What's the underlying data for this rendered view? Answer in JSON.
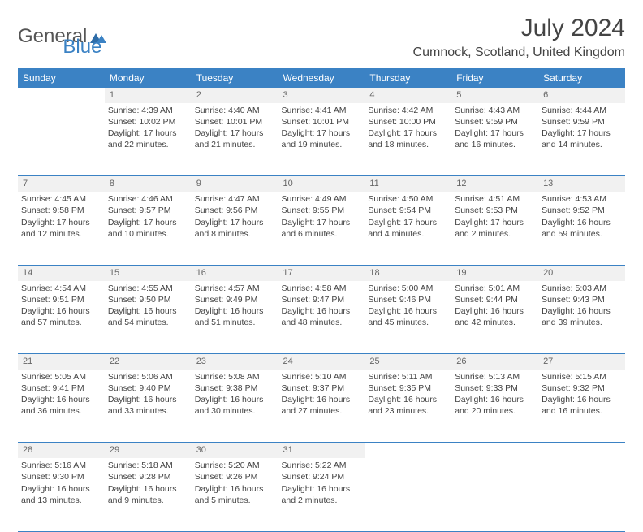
{
  "brand": {
    "part1": "General",
    "part2": "Blue"
  },
  "title": "July 2024",
  "location": "Cumnock, Scotland, United Kingdom",
  "colors": {
    "header_bg": "#3b82c4",
    "header_fg": "#ffffff",
    "daynum_bg": "#f1f1f1",
    "text": "#444444",
    "rule": "#3b82c4"
  },
  "weekdays": [
    "Sunday",
    "Monday",
    "Tuesday",
    "Wednesday",
    "Thursday",
    "Friday",
    "Saturday"
  ],
  "weeks": [
    {
      "nums": [
        "",
        "1",
        "2",
        "3",
        "4",
        "5",
        "6"
      ],
      "cells": [
        [],
        [
          "Sunrise: 4:39 AM",
          "Sunset: 10:02 PM",
          "Daylight: 17 hours",
          "and 22 minutes."
        ],
        [
          "Sunrise: 4:40 AM",
          "Sunset: 10:01 PM",
          "Daylight: 17 hours",
          "and 21 minutes."
        ],
        [
          "Sunrise: 4:41 AM",
          "Sunset: 10:01 PM",
          "Daylight: 17 hours",
          "and 19 minutes."
        ],
        [
          "Sunrise: 4:42 AM",
          "Sunset: 10:00 PM",
          "Daylight: 17 hours",
          "and 18 minutes."
        ],
        [
          "Sunrise: 4:43 AM",
          "Sunset: 9:59 PM",
          "Daylight: 17 hours",
          "and 16 minutes."
        ],
        [
          "Sunrise: 4:44 AM",
          "Sunset: 9:59 PM",
          "Daylight: 17 hours",
          "and 14 minutes."
        ]
      ]
    },
    {
      "nums": [
        "7",
        "8",
        "9",
        "10",
        "11",
        "12",
        "13"
      ],
      "cells": [
        [
          "Sunrise: 4:45 AM",
          "Sunset: 9:58 PM",
          "Daylight: 17 hours",
          "and 12 minutes."
        ],
        [
          "Sunrise: 4:46 AM",
          "Sunset: 9:57 PM",
          "Daylight: 17 hours",
          "and 10 minutes."
        ],
        [
          "Sunrise: 4:47 AM",
          "Sunset: 9:56 PM",
          "Daylight: 17 hours",
          "and 8 minutes."
        ],
        [
          "Sunrise: 4:49 AM",
          "Sunset: 9:55 PM",
          "Daylight: 17 hours",
          "and 6 minutes."
        ],
        [
          "Sunrise: 4:50 AM",
          "Sunset: 9:54 PM",
          "Daylight: 17 hours",
          "and 4 minutes."
        ],
        [
          "Sunrise: 4:51 AM",
          "Sunset: 9:53 PM",
          "Daylight: 17 hours",
          "and 2 minutes."
        ],
        [
          "Sunrise: 4:53 AM",
          "Sunset: 9:52 PM",
          "Daylight: 16 hours",
          "and 59 minutes."
        ]
      ]
    },
    {
      "nums": [
        "14",
        "15",
        "16",
        "17",
        "18",
        "19",
        "20"
      ],
      "cells": [
        [
          "Sunrise: 4:54 AM",
          "Sunset: 9:51 PM",
          "Daylight: 16 hours",
          "and 57 minutes."
        ],
        [
          "Sunrise: 4:55 AM",
          "Sunset: 9:50 PM",
          "Daylight: 16 hours",
          "and 54 minutes."
        ],
        [
          "Sunrise: 4:57 AM",
          "Sunset: 9:49 PM",
          "Daylight: 16 hours",
          "and 51 minutes."
        ],
        [
          "Sunrise: 4:58 AM",
          "Sunset: 9:47 PM",
          "Daylight: 16 hours",
          "and 48 minutes."
        ],
        [
          "Sunrise: 5:00 AM",
          "Sunset: 9:46 PM",
          "Daylight: 16 hours",
          "and 45 minutes."
        ],
        [
          "Sunrise: 5:01 AM",
          "Sunset: 9:44 PM",
          "Daylight: 16 hours",
          "and 42 minutes."
        ],
        [
          "Sunrise: 5:03 AM",
          "Sunset: 9:43 PM",
          "Daylight: 16 hours",
          "and 39 minutes."
        ]
      ]
    },
    {
      "nums": [
        "21",
        "22",
        "23",
        "24",
        "25",
        "26",
        "27"
      ],
      "cells": [
        [
          "Sunrise: 5:05 AM",
          "Sunset: 9:41 PM",
          "Daylight: 16 hours",
          "and 36 minutes."
        ],
        [
          "Sunrise: 5:06 AM",
          "Sunset: 9:40 PM",
          "Daylight: 16 hours",
          "and 33 minutes."
        ],
        [
          "Sunrise: 5:08 AM",
          "Sunset: 9:38 PM",
          "Daylight: 16 hours",
          "and 30 minutes."
        ],
        [
          "Sunrise: 5:10 AM",
          "Sunset: 9:37 PM",
          "Daylight: 16 hours",
          "and 27 minutes."
        ],
        [
          "Sunrise: 5:11 AM",
          "Sunset: 9:35 PM",
          "Daylight: 16 hours",
          "and 23 minutes."
        ],
        [
          "Sunrise: 5:13 AM",
          "Sunset: 9:33 PM",
          "Daylight: 16 hours",
          "and 20 minutes."
        ],
        [
          "Sunrise: 5:15 AM",
          "Sunset: 9:32 PM",
          "Daylight: 16 hours",
          "and 16 minutes."
        ]
      ]
    },
    {
      "nums": [
        "28",
        "29",
        "30",
        "31",
        "",
        "",
        ""
      ],
      "cells": [
        [
          "Sunrise: 5:16 AM",
          "Sunset: 9:30 PM",
          "Daylight: 16 hours",
          "and 13 minutes."
        ],
        [
          "Sunrise: 5:18 AM",
          "Sunset: 9:28 PM",
          "Daylight: 16 hours",
          "and 9 minutes."
        ],
        [
          "Sunrise: 5:20 AM",
          "Sunset: 9:26 PM",
          "Daylight: 16 hours",
          "and 5 minutes."
        ],
        [
          "Sunrise: 5:22 AM",
          "Sunset: 9:24 PM",
          "Daylight: 16 hours",
          "and 2 minutes."
        ],
        [],
        [],
        []
      ]
    }
  ]
}
